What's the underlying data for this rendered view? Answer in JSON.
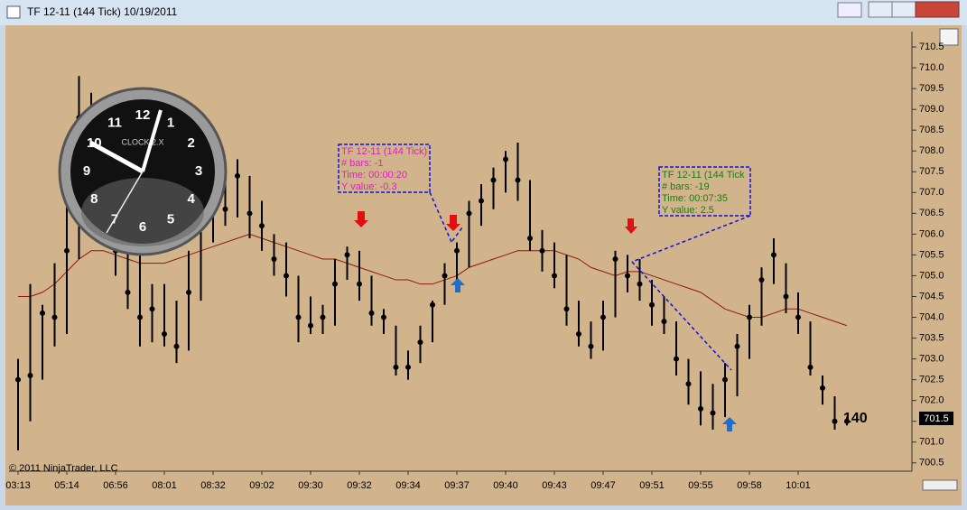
{
  "window_title": "TF 12-11 (144 Tick)  10/19/2011",
  "copyright": "© 2011 NinjaTrader, LLC",
  "bar_counter": "140",
  "last_price_label": "701.5",
  "clock": {
    "label": "CLOCK 2.X",
    "numbers": [
      "12",
      "1",
      "2",
      "3",
      "4",
      "5",
      "6",
      "7",
      "8",
      "9",
      "10",
      "11"
    ]
  },
  "annotations": [
    {
      "color": "#e020c0",
      "lines": [
        "TF 12-11 (144 Tick)",
        "# bars:   -1",
        "Time:     00:00:20",
        "Y value: -0.3"
      ]
    },
    {
      "color": "#207a10",
      "lines": [
        "TF 12-11 (144 Tick",
        "# bars:   -19",
        "Time:     00:07:35",
        "Y value: 2.5"
      ]
    }
  ],
  "chart_data": {
    "type": "ohlc",
    "categories": [
      "03:13",
      null,
      null,
      null,
      "05:14",
      null,
      null,
      null,
      "06:56",
      null,
      null,
      null,
      "08:01",
      null,
      null,
      null,
      "08:32",
      null,
      null,
      null,
      "09:02",
      null,
      null,
      null,
      "09:30",
      null,
      null,
      null,
      "09:32",
      null,
      null,
      null,
      "09:34",
      null,
      null,
      null,
      "09:37",
      null,
      null,
      null,
      "09:40",
      null,
      null,
      null,
      "09:43",
      null,
      null,
      null,
      "09:47",
      null,
      null,
      null,
      "09:51",
      null,
      null,
      null,
      "09:55",
      null,
      null,
      null,
      "09:58",
      null,
      null,
      null,
      "10:01",
      null,
      null,
      null,
      null
    ],
    "high": [
      703,
      704.8,
      704.3,
      705.3,
      707,
      709.8,
      709.4,
      708.3,
      708.6,
      706.2,
      705.6,
      704.8,
      704.8,
      704.4,
      705.6,
      707,
      707.8,
      707.6,
      707.8,
      707.4,
      706.8,
      706,
      705.8,
      705,
      704.5,
      704.3,
      705.4,
      705.7,
      705.6,
      705,
      704.2,
      703.8,
      703.2,
      703.8,
      704.4,
      705.3,
      705.8,
      706.8,
      707.2,
      707.6,
      708,
      708.2,
      707.3,
      706.1,
      705.8,
      705.5,
      704.4,
      703.9,
      704.4,
      705.6,
      705.5,
      705.4,
      704.9,
      704.5,
      703.9,
      703,
      702.7,
      702.4,
      702.9,
      703.6,
      704.3,
      705.2,
      705.9,
      705.3,
      704.6,
      703.9,
      702.6,
      702.1,
      701.6
    ],
    "low": [
      700.8,
      701.5,
      702.5,
      703.3,
      703.6,
      705.4,
      706.5,
      706.6,
      705,
      704.2,
      703.3,
      703.4,
      703.3,
      702.9,
      703.2,
      704.4,
      705.8,
      706.2,
      706.4,
      705.9,
      705.6,
      705,
      704.5,
      703.4,
      703.6,
      703.6,
      703.8,
      704.9,
      704.4,
      703.8,
      703.6,
      702.6,
      702.5,
      702.9,
      703.4,
      704.3,
      704.8,
      705.2,
      706.2,
      706.6,
      707,
      706.8,
      705.6,
      705.1,
      704.7,
      703.8,
      703.3,
      703,
      703.2,
      704,
      704.6,
      704.4,
      703.8,
      703.6,
      702.6,
      701.9,
      701.4,
      701.3,
      701.6,
      702.1,
      703,
      703.8,
      704.8,
      704.1,
      703.6,
      702.6,
      701.9,
      701.3,
      701.4
    ],
    "close": [
      702.5,
      702.6,
      704.1,
      704,
      705.6,
      708.8,
      707.2,
      707.8,
      705.6,
      704.6,
      704,
      704.2,
      703.6,
      703.3,
      704.6,
      706.5,
      707,
      706.6,
      707.4,
      706.5,
      706.2,
      705.4,
      705,
      704,
      703.8,
      704,
      704.8,
      705.5,
      704.8,
      704.1,
      704,
      702.8,
      702.8,
      703.4,
      704.3,
      705,
      705.6,
      706.5,
      706.8,
      707.3,
      707.8,
      707.3,
      705.9,
      705.6,
      705,
      704.2,
      703.6,
      703.3,
      704,
      705.4,
      705,
      704.8,
      704.3,
      703.9,
      703,
      702.4,
      701.8,
      701.7,
      702.5,
      703.3,
      704,
      704.9,
      705.5,
      704.5,
      704,
      702.8,
      702.3,
      701.5,
      701.5
    ],
    "moving_average": [
      704.5,
      704.5,
      704.6,
      704.8,
      705.1,
      705.4,
      705.6,
      705.6,
      705.5,
      705.4,
      705.3,
      705.3,
      705.3,
      705.4,
      705.5,
      705.6,
      705.7,
      705.8,
      705.9,
      706,
      705.9,
      705.8,
      705.7,
      705.6,
      705.5,
      705.4,
      705.4,
      705.3,
      705.2,
      705.1,
      705,
      704.9,
      704.9,
      704.8,
      704.8,
      704.9,
      705,
      705.2,
      705.3,
      705.4,
      705.5,
      705.6,
      705.6,
      705.6,
      705.6,
      705.5,
      705.4,
      705.2,
      705.1,
      705,
      705.1,
      705.1,
      705,
      704.9,
      704.8,
      704.7,
      704.6,
      704.4,
      704.2,
      704.1,
      704,
      704,
      704.1,
      704.2,
      704.2,
      704.1,
      704,
      703.9,
      703.8
    ],
    "bar_color": "#000000",
    "ma_color": "#8b1a0a",
    "ylim": [
      700.3,
      710.87
    ],
    "yticks": [
      700.5,
      {
        "value": 701,
        "label": "701.0"
      },
      701.5,
      {
        "value": 702,
        "label": "702.0"
      },
      702.5,
      {
        "value": 703,
        "label": "703.0"
      },
      703.5,
      {
        "value": 704,
        "label": "704.0"
      },
      704.5,
      {
        "value": 705,
        "label": "705.0"
      },
      705.5,
      {
        "value": 706,
        "label": "706.0"
      },
      706.5,
      {
        "value": 707,
        "label": "707.0"
      },
      707.5,
      {
        "value": 708,
        "label": "708.0"
      },
      708.5,
      {
        "value": 709,
        "label": "709.0"
      },
      709.5,
      {
        "value": 710,
        "label": "710.0"
      },
      710.5
    ]
  }
}
